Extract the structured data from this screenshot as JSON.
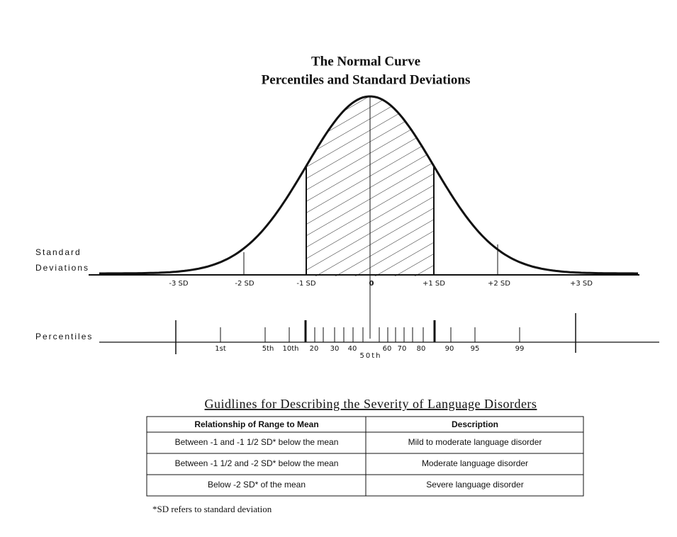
{
  "title": [
    "The Normal Curve",
    "Percentiles and Standard Deviations"
  ],
  "sd_axis": {
    "label": [
      "Standard",
      "Deviations"
    ],
    "ticks": [
      "-3 SD",
      "-2 SD",
      "-1 SD",
      "0",
      "+1 SD",
      "+2 SD",
      "+3 SD"
    ]
  },
  "percentile_axis": {
    "label": "Percentiles",
    "ticks": [
      "1st",
      "5th",
      "10th",
      "20",
      "30",
      "40",
      "60",
      "70",
      "80",
      "90",
      "95",
      "99"
    ],
    "median": "50th"
  },
  "table": {
    "title": "Guidlines for Describing the Severity of Language Disorders",
    "header": [
      "Relationship of Range to Mean",
      "Description"
    ],
    "rows": [
      [
        "Between -1 and -1 1/2 SD* below the mean",
        "Mild to moderate language disorder"
      ],
      [
        "Between -1 1/2 and -2 SD* below the mean",
        "Moderate language disorder"
      ],
      [
        "Below -2 SD* of the mean",
        "Severe language disorder"
      ]
    ],
    "footnote": "*SD   refers to standard deviation"
  }
}
